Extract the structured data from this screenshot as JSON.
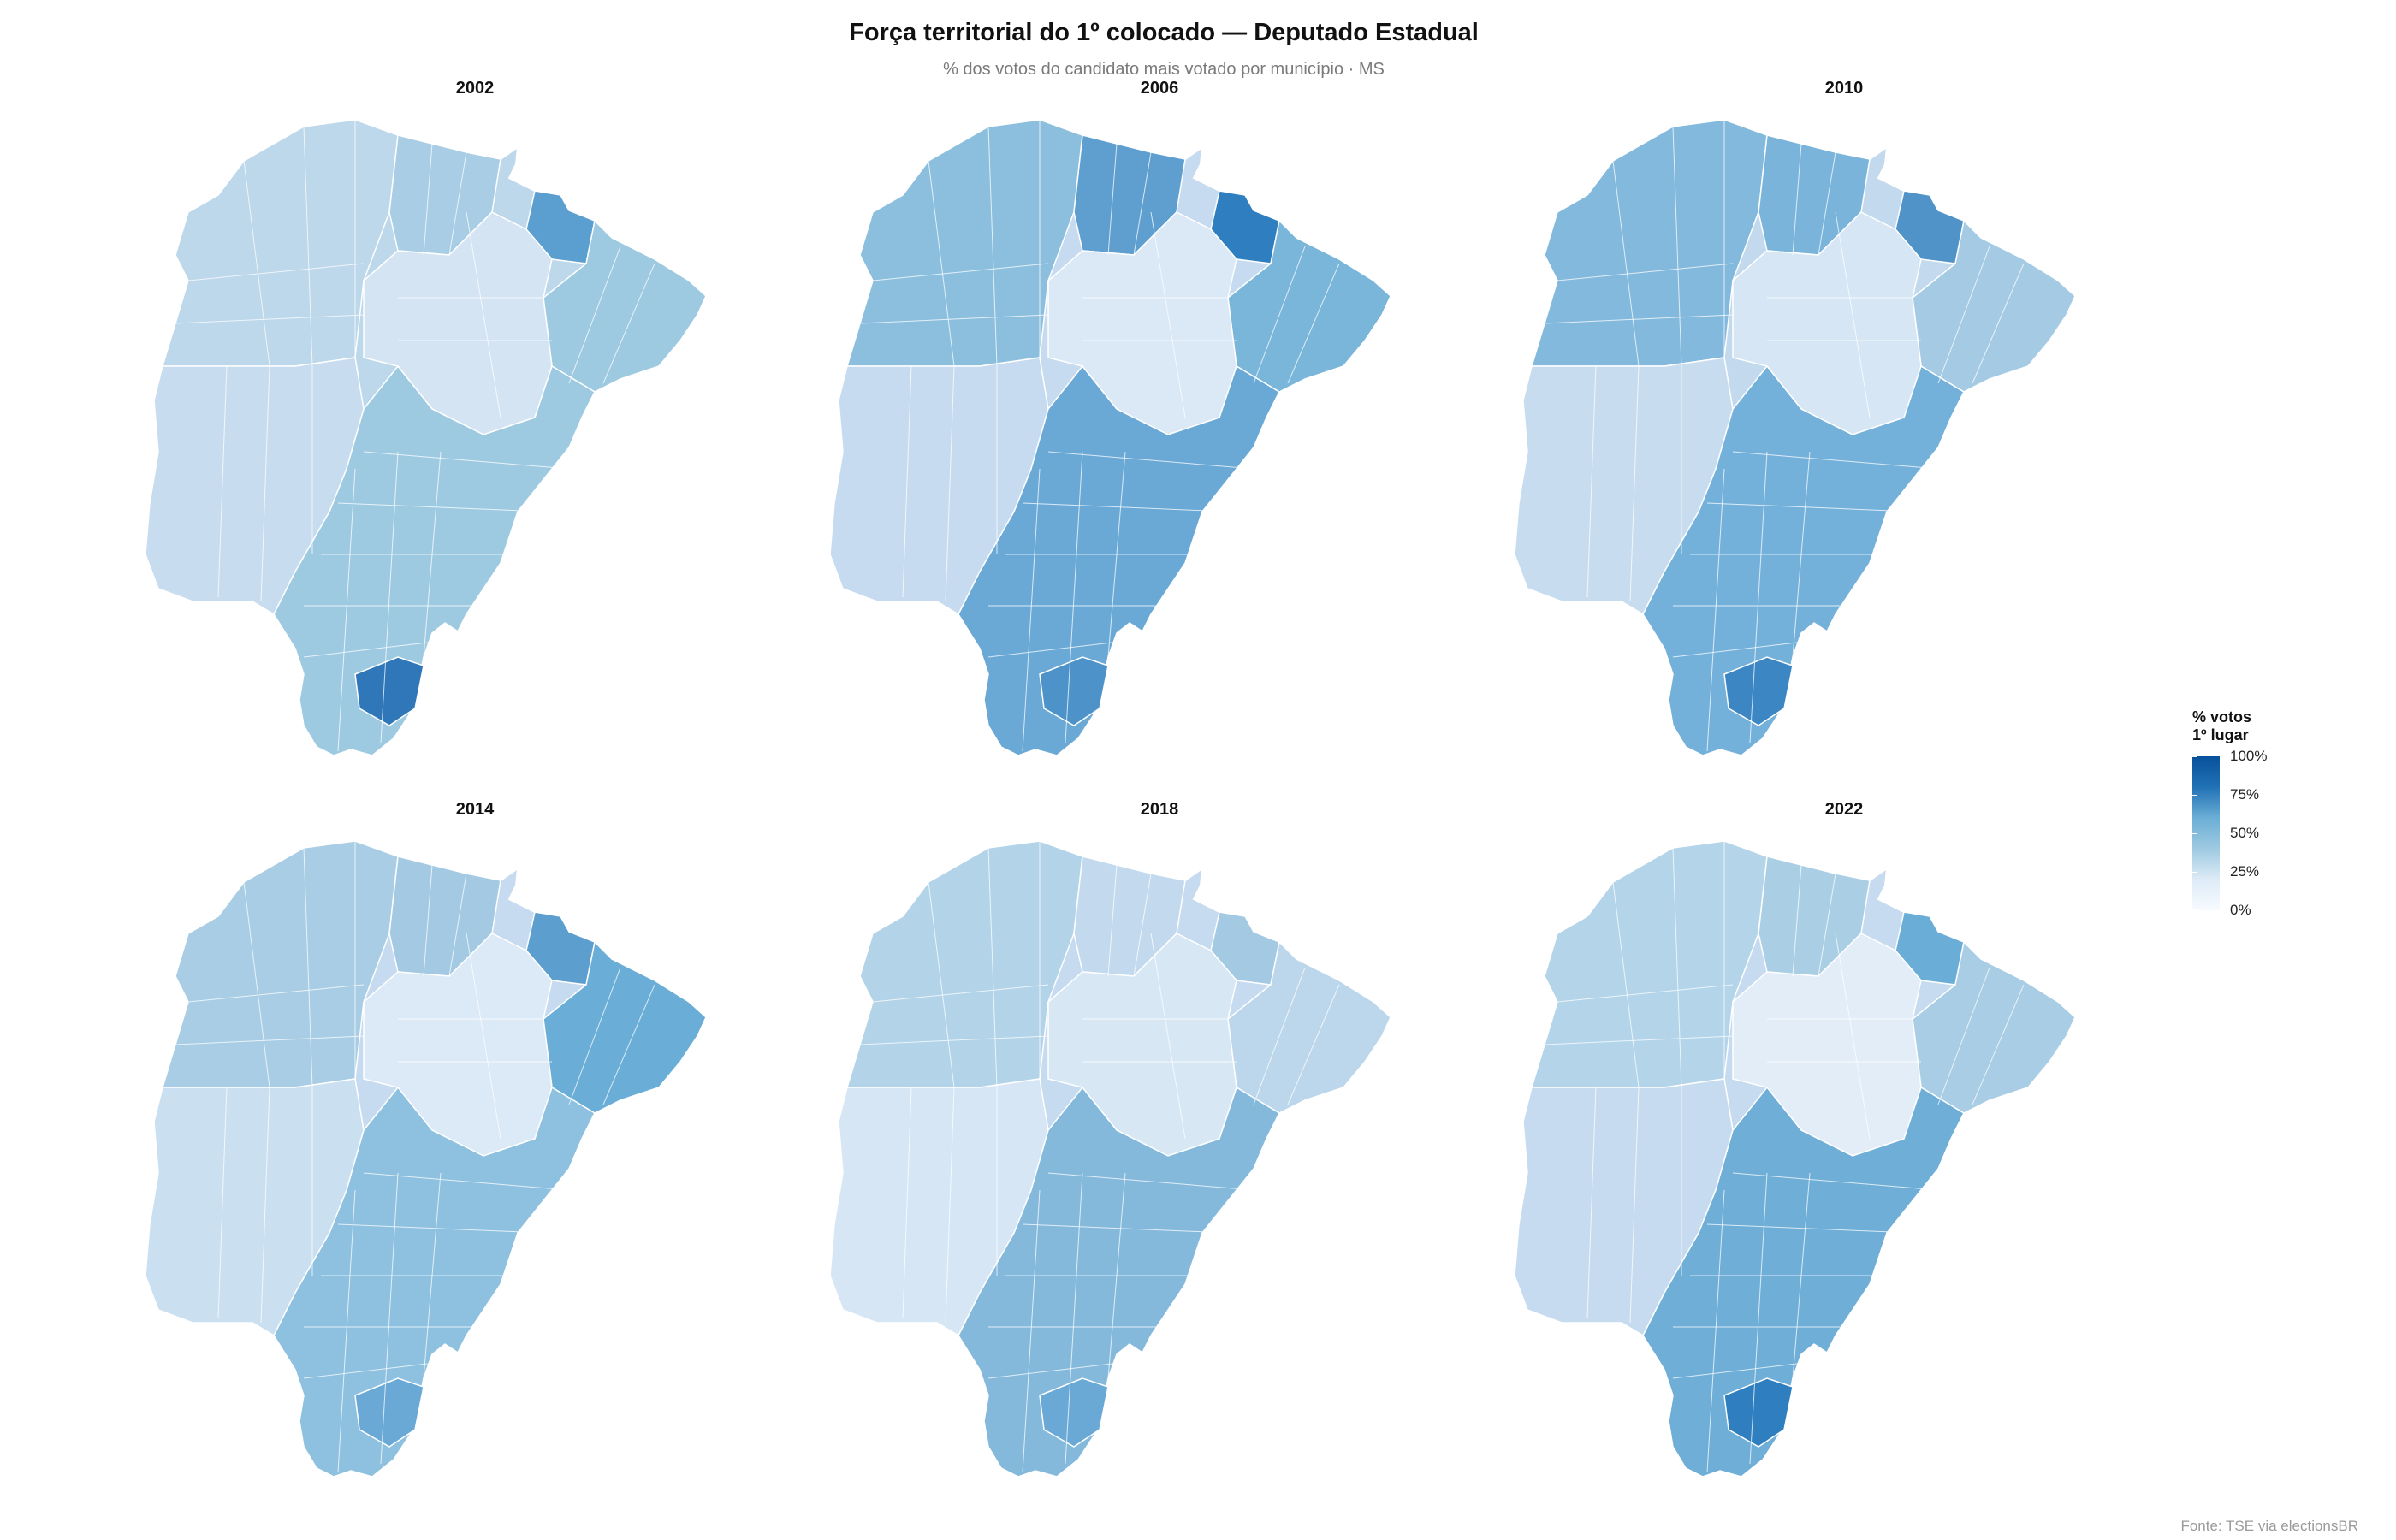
{
  "title": "Força territorial do 1º colocado — Deputado Estadual",
  "subtitle": "% dos votos do candidato mais votado por município · MS",
  "source": "Fonte: TSE via electionsBR",
  "legend": {
    "title": "% votos\n1º lugar",
    "ticks": [
      "100%",
      "75%",
      "50%",
      "25%",
      "0%"
    ],
    "colors": [
      "#f7fbff",
      "#deebf7",
      "#9ecae1",
      "#6baed6",
      "#2171b5",
      "#08519c"
    ]
  },
  "panels": [
    {
      "year": "2002",
      "base_color": "#bdd7eb",
      "regions": [
        {
          "name": "pantanal-north",
          "color": "#bdd7eb"
        },
        {
          "name": "north",
          "color": "#a8cde4"
        },
        {
          "name": "northeast-hotspot",
          "color": "#5a9fd0"
        },
        {
          "name": "east",
          "color": "#9ecae1"
        },
        {
          "name": "center",
          "color": "#d4e4f3"
        },
        {
          "name": "southwest",
          "color": "#c8dcef"
        },
        {
          "name": "south",
          "color": "#9ecae1"
        },
        {
          "name": "south-hotspot",
          "color": "#2f77b8"
        }
      ]
    },
    {
      "year": "2006",
      "base_color": "#c6dbef",
      "regions": [
        {
          "name": "pantanal-north",
          "color": "#8cbfdd"
        },
        {
          "name": "north",
          "color": "#5e9fd0"
        },
        {
          "name": "northeast-hotspot",
          "color": "#2f7fc0"
        },
        {
          "name": "east",
          "color": "#7ab5da"
        },
        {
          "name": "center",
          "color": "#dbe8f5"
        },
        {
          "name": "southwest",
          "color": "#c6dbef"
        },
        {
          "name": "south",
          "color": "#6aa9d6"
        },
        {
          "name": "south-hotspot",
          "color": "#4d93c9"
        }
      ]
    },
    {
      "year": "2010",
      "base_color": "#c2d9ee",
      "regions": [
        {
          "name": "pantanal-north",
          "color": "#83b9dc"
        },
        {
          "name": "north",
          "color": "#7ab4da"
        },
        {
          "name": "northeast-hotspot",
          "color": "#4f93c9"
        },
        {
          "name": "east",
          "color": "#a5cbe4"
        },
        {
          "name": "center",
          "color": "#d6e6f4"
        },
        {
          "name": "southwest",
          "color": "#c8dcef"
        },
        {
          "name": "south",
          "color": "#74b1da"
        },
        {
          "name": "south-hotspot",
          "color": "#3d86c4"
        }
      ]
    },
    {
      "year": "2014",
      "base_color": "#c6dbef",
      "regions": [
        {
          "name": "pantanal-north",
          "color": "#a9cde4"
        },
        {
          "name": "north",
          "color": "#a3c9e3"
        },
        {
          "name": "northeast-hotspot",
          "color": "#5c9fcf"
        },
        {
          "name": "east",
          "color": "#6aaed7"
        },
        {
          "name": "center",
          "color": "#dce9f6"
        },
        {
          "name": "southwest",
          "color": "#cadff0"
        },
        {
          "name": "south",
          "color": "#8ec0df"
        },
        {
          "name": "south-hotspot",
          "color": "#6aa9d6"
        }
      ]
    },
    {
      "year": "2018",
      "base_color": "#c6dbef",
      "regions": [
        {
          "name": "pantanal-north",
          "color": "#b2d3e8"
        },
        {
          "name": "north",
          "color": "#c2d9ee"
        },
        {
          "name": "northeast-hotspot",
          "color": "#a3c9e3"
        },
        {
          "name": "east",
          "color": "#bcd7ec"
        },
        {
          "name": "center",
          "color": "#d8e7f4"
        },
        {
          "name": "southwest",
          "color": "#d6e6f4"
        },
        {
          "name": "south",
          "color": "#84b9dc"
        },
        {
          "name": "south-hotspot",
          "color": "#6aa9d6"
        }
      ]
    },
    {
      "year": "2022",
      "base_color": "#c6dbef",
      "regions": [
        {
          "name": "pantanal-north",
          "color": "#b3d4e9"
        },
        {
          "name": "north",
          "color": "#aacfe5"
        },
        {
          "name": "northeast-hotspot",
          "color": "#6aaed7"
        },
        {
          "name": "east",
          "color": "#a8cde4"
        },
        {
          "name": "center",
          "color": "#e2edf8"
        },
        {
          "name": "southwest",
          "color": "#c6dbef"
        },
        {
          "name": "south",
          "color": "#6eaed7"
        },
        {
          "name": "south-hotspot",
          "color": "#2f7fc0"
        }
      ]
    }
  ]
}
